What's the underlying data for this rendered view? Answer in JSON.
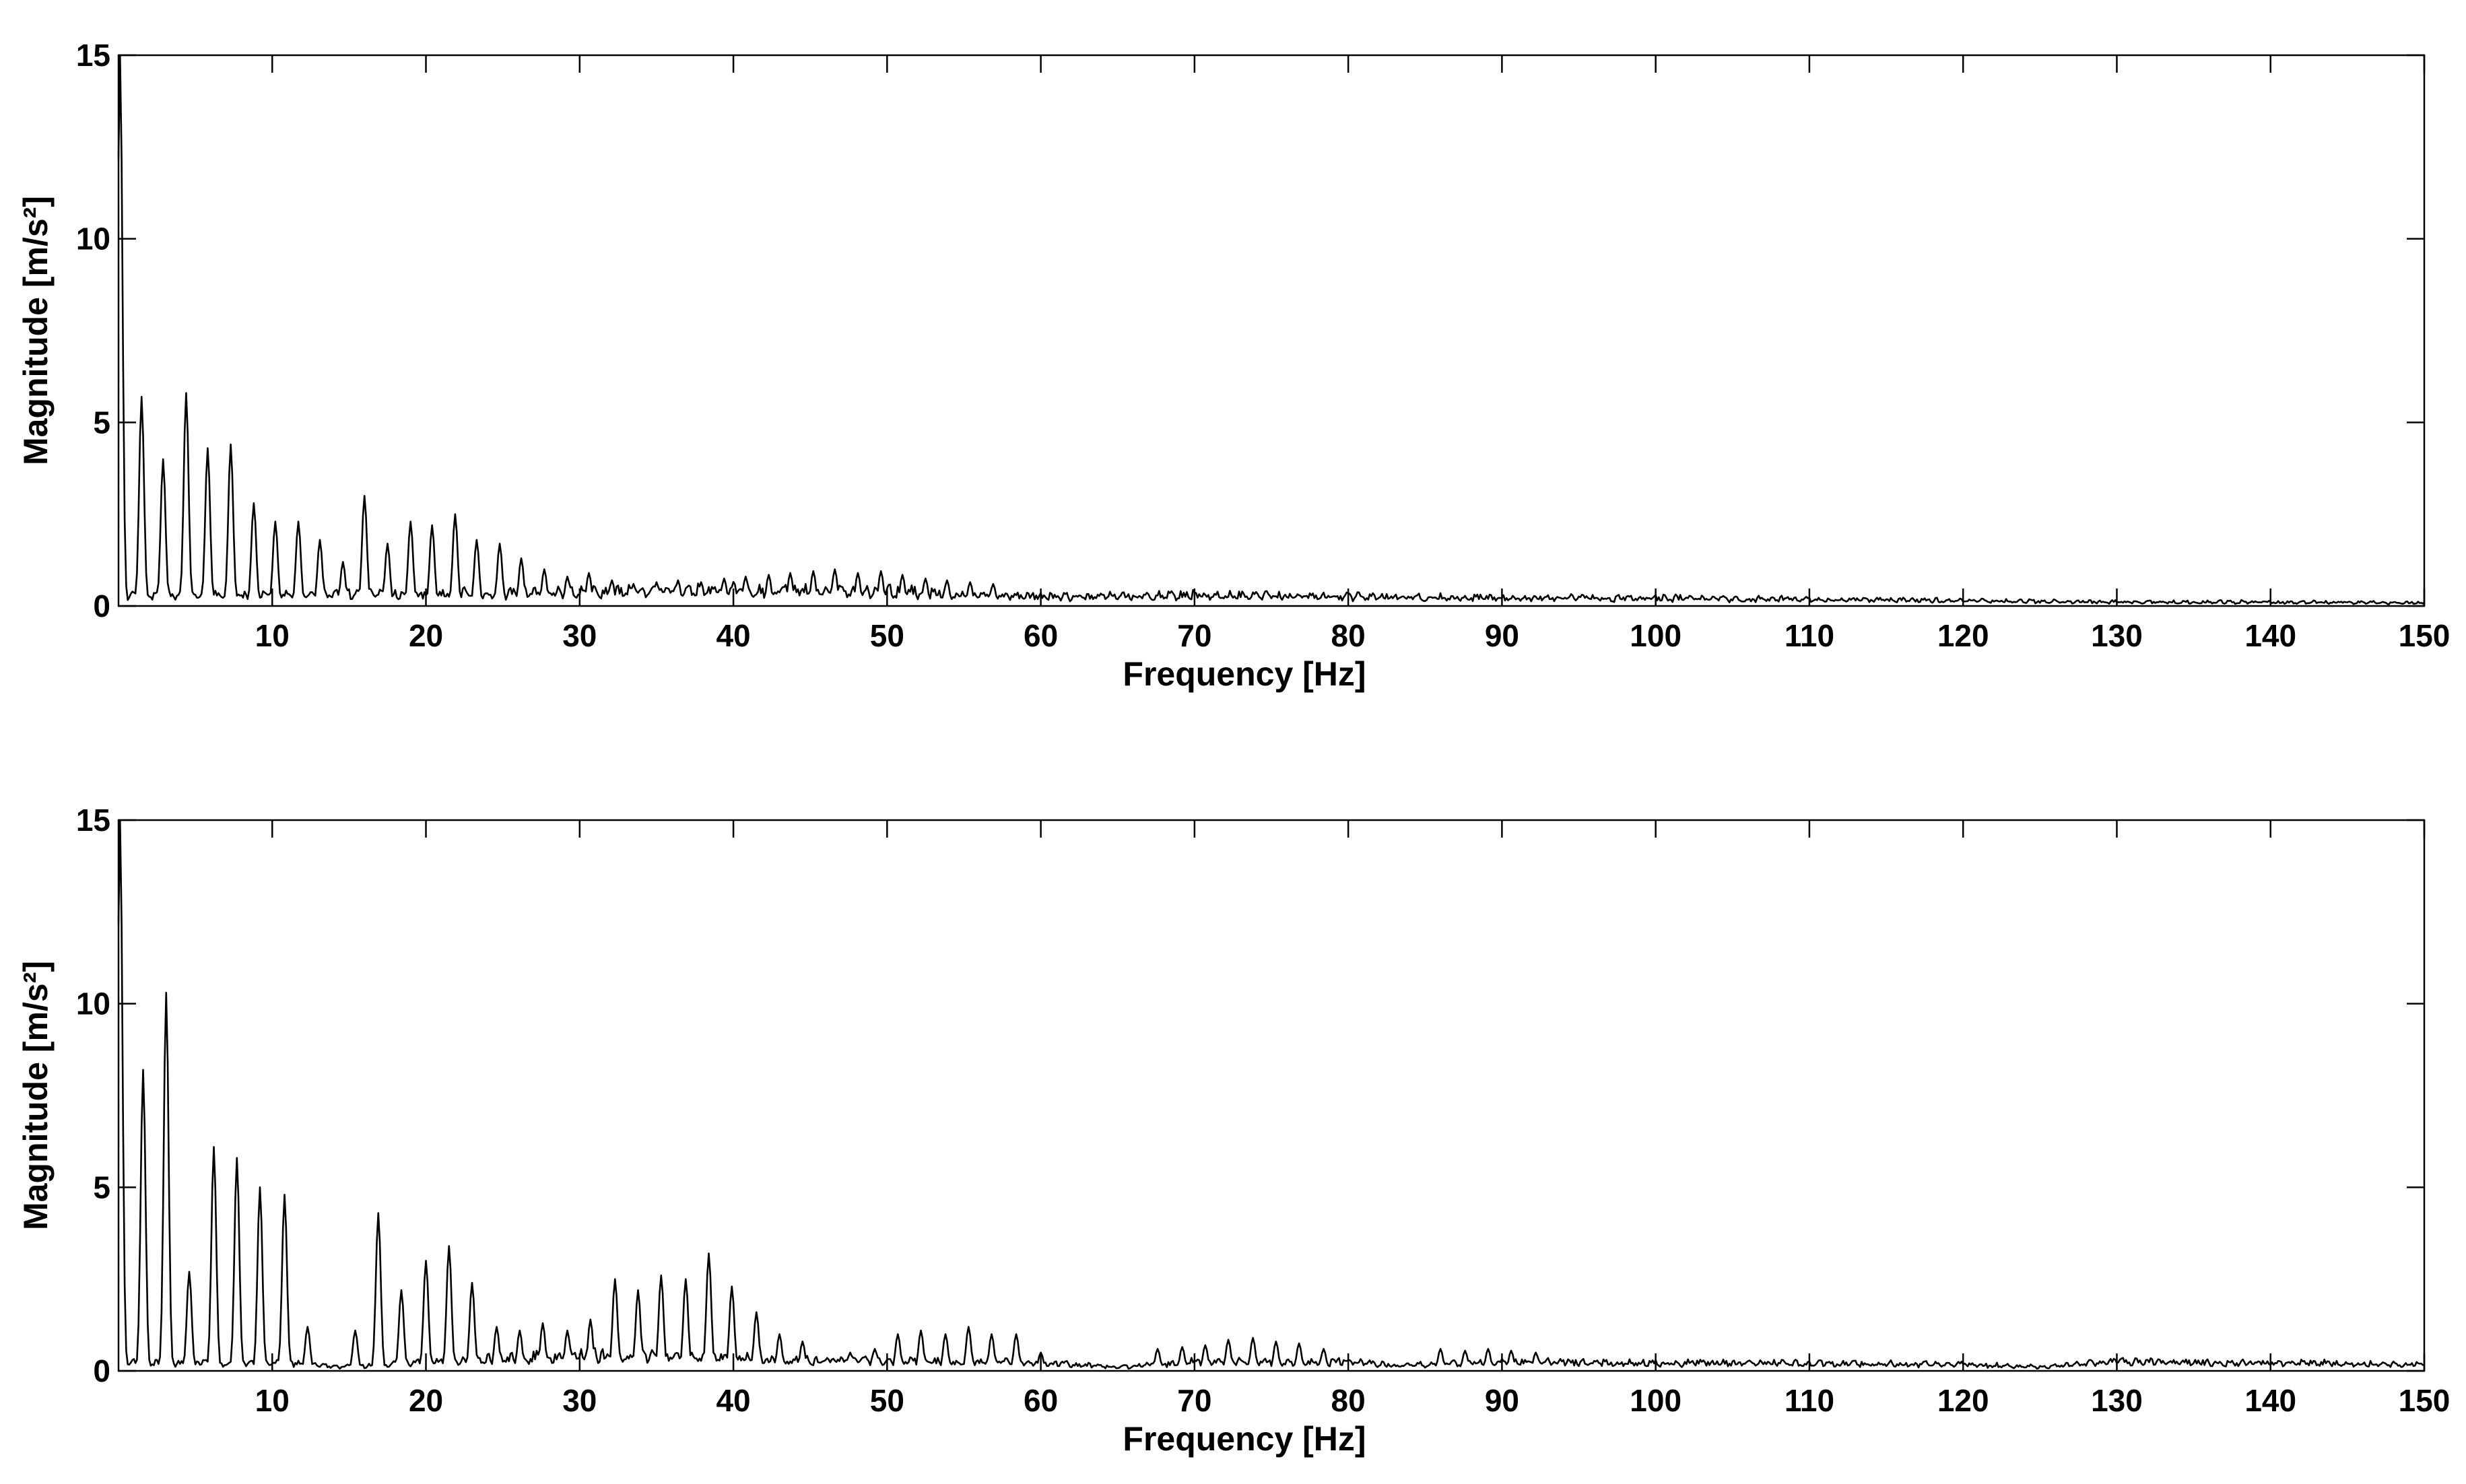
{
  "figure": {
    "background": "#ffffff",
    "line_color": "#000000"
  },
  "chart_data": [
    {
      "type": "line",
      "title": "",
      "xlabel": "Frequency [Hz]",
      "ylabel": "Magnitude [m/s²]",
      "xlim": [
        0,
        150
      ],
      "ylim": [
        0,
        15
      ],
      "xticks": [
        10,
        20,
        30,
        40,
        50,
        60,
        70,
        80,
        90,
        100,
        110,
        120,
        130,
        140,
        150
      ],
      "xtick_labels": [
        "10",
        "20",
        "30",
        "40",
        "50",
        "60",
        "70",
        "80",
        "90",
        "100",
        "110",
        "120",
        "130",
        "140",
        "150"
      ],
      "yticks": [
        0,
        5,
        10,
        15
      ],
      "ytick_labels": [
        "0",
        "5",
        "10",
        "15"
      ],
      "grid": false,
      "series": [
        {
          "color": "#000000",
          "peaks": [
            [
              0.1,
              15.0
            ],
            [
              1.5,
              5.7
            ],
            [
              2.9,
              4.0
            ],
            [
              4.4,
              5.8
            ],
            [
              5.8,
              4.3
            ],
            [
              7.3,
              4.4
            ],
            [
              8.8,
              2.8
            ],
            [
              10.2,
              2.3
            ],
            [
              11.7,
              2.3
            ],
            [
              13.1,
              1.8
            ],
            [
              14.6,
              1.2
            ],
            [
              16.0,
              3.0
            ],
            [
              17.5,
              1.7
            ],
            [
              19.0,
              2.3
            ],
            [
              20.4,
              2.2
            ],
            [
              21.9,
              2.5
            ],
            [
              23.3,
              1.8
            ],
            [
              24.8,
              1.7
            ],
            [
              26.2,
              1.3
            ],
            [
              27.7,
              1.0
            ],
            [
              29.2,
              0.8
            ],
            [
              30.6,
              0.9
            ],
            [
              32.1,
              0.7
            ],
            [
              33.5,
              0.6
            ],
            [
              35.0,
              0.65
            ],
            [
              36.4,
              0.7
            ],
            [
              37.9,
              0.65
            ],
            [
              39.4,
              0.75
            ],
            [
              40.8,
              0.8
            ],
            [
              42.3,
              0.85
            ],
            [
              43.7,
              0.9
            ],
            [
              45.2,
              0.95
            ],
            [
              46.6,
              1.0
            ],
            [
              48.1,
              0.9
            ],
            [
              49.6,
              0.95
            ],
            [
              51.0,
              0.85
            ],
            [
              52.5,
              0.75
            ],
            [
              53.9,
              0.7
            ],
            [
              55.4,
              0.65
            ],
            [
              56.9,
              0.6
            ]
          ],
          "noise_floor": [
            [
              0,
              0.4
            ],
            [
              30,
              0.5
            ],
            [
              40,
              0.6
            ],
            [
              50,
              0.55
            ],
            [
              60,
              0.35
            ],
            [
              70,
              0.4
            ],
            [
              80,
              0.35
            ],
            [
              90,
              0.3
            ],
            [
              100,
              0.3
            ],
            [
              110,
              0.25
            ],
            [
              120,
              0.2
            ],
            [
              130,
              0.15
            ],
            [
              140,
              0.15
            ],
            [
              150,
              0.12
            ]
          ],
          "end_value": 0.1
        }
      ]
    },
    {
      "type": "line",
      "title": "",
      "xlabel": "Frequency [Hz]",
      "ylabel": "Magnitude [m/s²]",
      "xlim": [
        0,
        150
      ],
      "ylim": [
        0,
        15
      ],
      "xticks": [
        10,
        20,
        30,
        40,
        50,
        60,
        70,
        80,
        90,
        100,
        110,
        120,
        130,
        140,
        150
      ],
      "xtick_labels": [
        "10",
        "20",
        "30",
        "40",
        "50",
        "60",
        "70",
        "80",
        "90",
        "100",
        "110",
        "120",
        "130",
        "140",
        "150"
      ],
      "yticks": [
        0,
        5,
        10,
        15
      ],
      "ytick_labels": [
        "0",
        "5",
        "10",
        "15"
      ],
      "grid": false,
      "series": [
        {
          "color": "#000000",
          "peaks": [
            [
              0.1,
              15.0
            ],
            [
              1.6,
              8.2
            ],
            [
              3.1,
              10.3
            ],
            [
              4.6,
              2.7
            ],
            [
              6.2,
              6.1
            ],
            [
              7.7,
              5.8
            ],
            [
              9.2,
              5.0
            ],
            [
              10.8,
              4.8
            ],
            [
              12.3,
              1.2
            ],
            [
              15.4,
              1.1
            ],
            [
              16.9,
              4.3
            ],
            [
              18.4,
              2.2
            ],
            [
              20.0,
              3.0
            ],
            [
              21.5,
              3.4
            ],
            [
              23.0,
              2.4
            ],
            [
              24.6,
              1.2
            ],
            [
              26.1,
              1.1
            ],
            [
              27.6,
              1.3
            ],
            [
              29.2,
              1.1
            ],
            [
              30.7,
              1.4
            ],
            [
              32.3,
              2.5
            ],
            [
              33.8,
              2.2
            ],
            [
              35.3,
              2.6
            ],
            [
              36.9,
              2.5
            ],
            [
              38.4,
              3.2
            ],
            [
              39.9,
              2.3
            ],
            [
              41.5,
              1.6
            ],
            [
              43.0,
              1.0
            ],
            [
              44.5,
              0.8
            ],
            [
              47.6,
              0.5
            ],
            [
              49.2,
              0.6
            ],
            [
              50.7,
              1.0
            ],
            [
              52.2,
              1.1
            ],
            [
              53.8,
              1.0
            ],
            [
              55.3,
              1.2
            ],
            [
              56.8,
              1.0
            ],
            [
              58.4,
              1.0
            ],
            [
              60.0,
              0.5
            ],
            [
              67.6,
              0.6
            ],
            [
              69.2,
              0.65
            ],
            [
              70.7,
              0.7
            ],
            [
              72.2,
              0.85
            ],
            [
              73.8,
              0.9
            ],
            [
              75.3,
              0.8
            ],
            [
              76.8,
              0.75
            ],
            [
              78.4,
              0.6
            ],
            [
              86.0,
              0.6
            ],
            [
              87.6,
              0.55
            ],
            [
              89.1,
              0.6
            ],
            [
              90.6,
              0.55
            ],
            [
              92.2,
              0.5
            ]
          ],
          "noise_floor": [
            [
              0,
              0.3
            ],
            [
              12,
              0.3
            ],
            [
              14,
              0.15
            ],
            [
              30,
              0.6
            ],
            [
              45,
              0.4
            ],
            [
              60,
              0.3
            ],
            [
              65,
              0.15
            ],
            [
              70,
              0.35
            ],
            [
              80,
              0.35
            ],
            [
              83,
              0.2
            ],
            [
              90,
              0.35
            ],
            [
              100,
              0.3
            ],
            [
              110,
              0.28
            ],
            [
              120,
              0.25
            ],
            [
              125,
              0.15
            ],
            [
              130,
              0.35
            ],
            [
              140,
              0.3
            ],
            [
              150,
              0.25
            ]
          ],
          "end_value": 0.15
        }
      ]
    }
  ]
}
